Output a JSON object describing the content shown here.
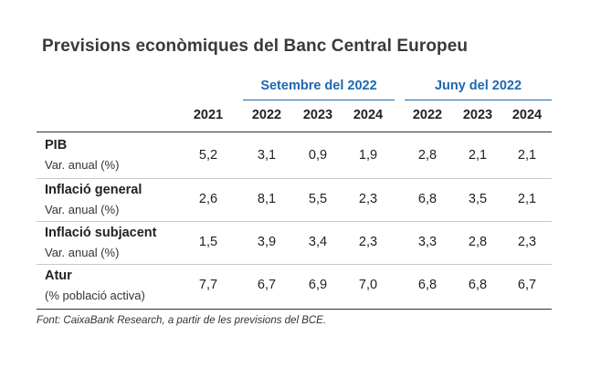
{
  "title": "Previsions econòmiques del Banc Central Europeu",
  "groups": [
    {
      "label": "Setembre del 2022"
    },
    {
      "label": "Juny del 2022"
    }
  ],
  "columns": [
    "2021",
    "2022",
    "2023",
    "2024",
    "2022",
    "2023",
    "2024"
  ],
  "rows": [
    {
      "label": "PIB",
      "sub": "Var. anual (%)",
      "values": [
        "5,2",
        "3,1",
        "0,9",
        "1,9",
        "2,8",
        "2,1",
        "2,1"
      ]
    },
    {
      "label": "Inflació general",
      "sub": "Var. anual (%)",
      "values": [
        "2,6",
        "8,1",
        "5,5",
        "2,3",
        "6,8",
        "3,5",
        "2,1"
      ]
    },
    {
      "label": "Inflació subjacent",
      "sub": "Var. anual (%)",
      "values": [
        "1,5",
        "3,9",
        "3,4",
        "2,3",
        "3,3",
        "2,8",
        "2,3"
      ]
    },
    {
      "label": "Atur",
      "sub": "(% població activa)",
      "values": [
        "7,7",
        "6,7",
        "6,9",
        "7,0",
        "6,8",
        "6,8",
        "6,7"
      ]
    }
  ],
  "source": "Font: CaixaBank Research, a partir de les previsions del BCE.",
  "colors": {
    "accent": "#1f67b1",
    "rule": "#c9c9c9",
    "text": "#222222"
  }
}
